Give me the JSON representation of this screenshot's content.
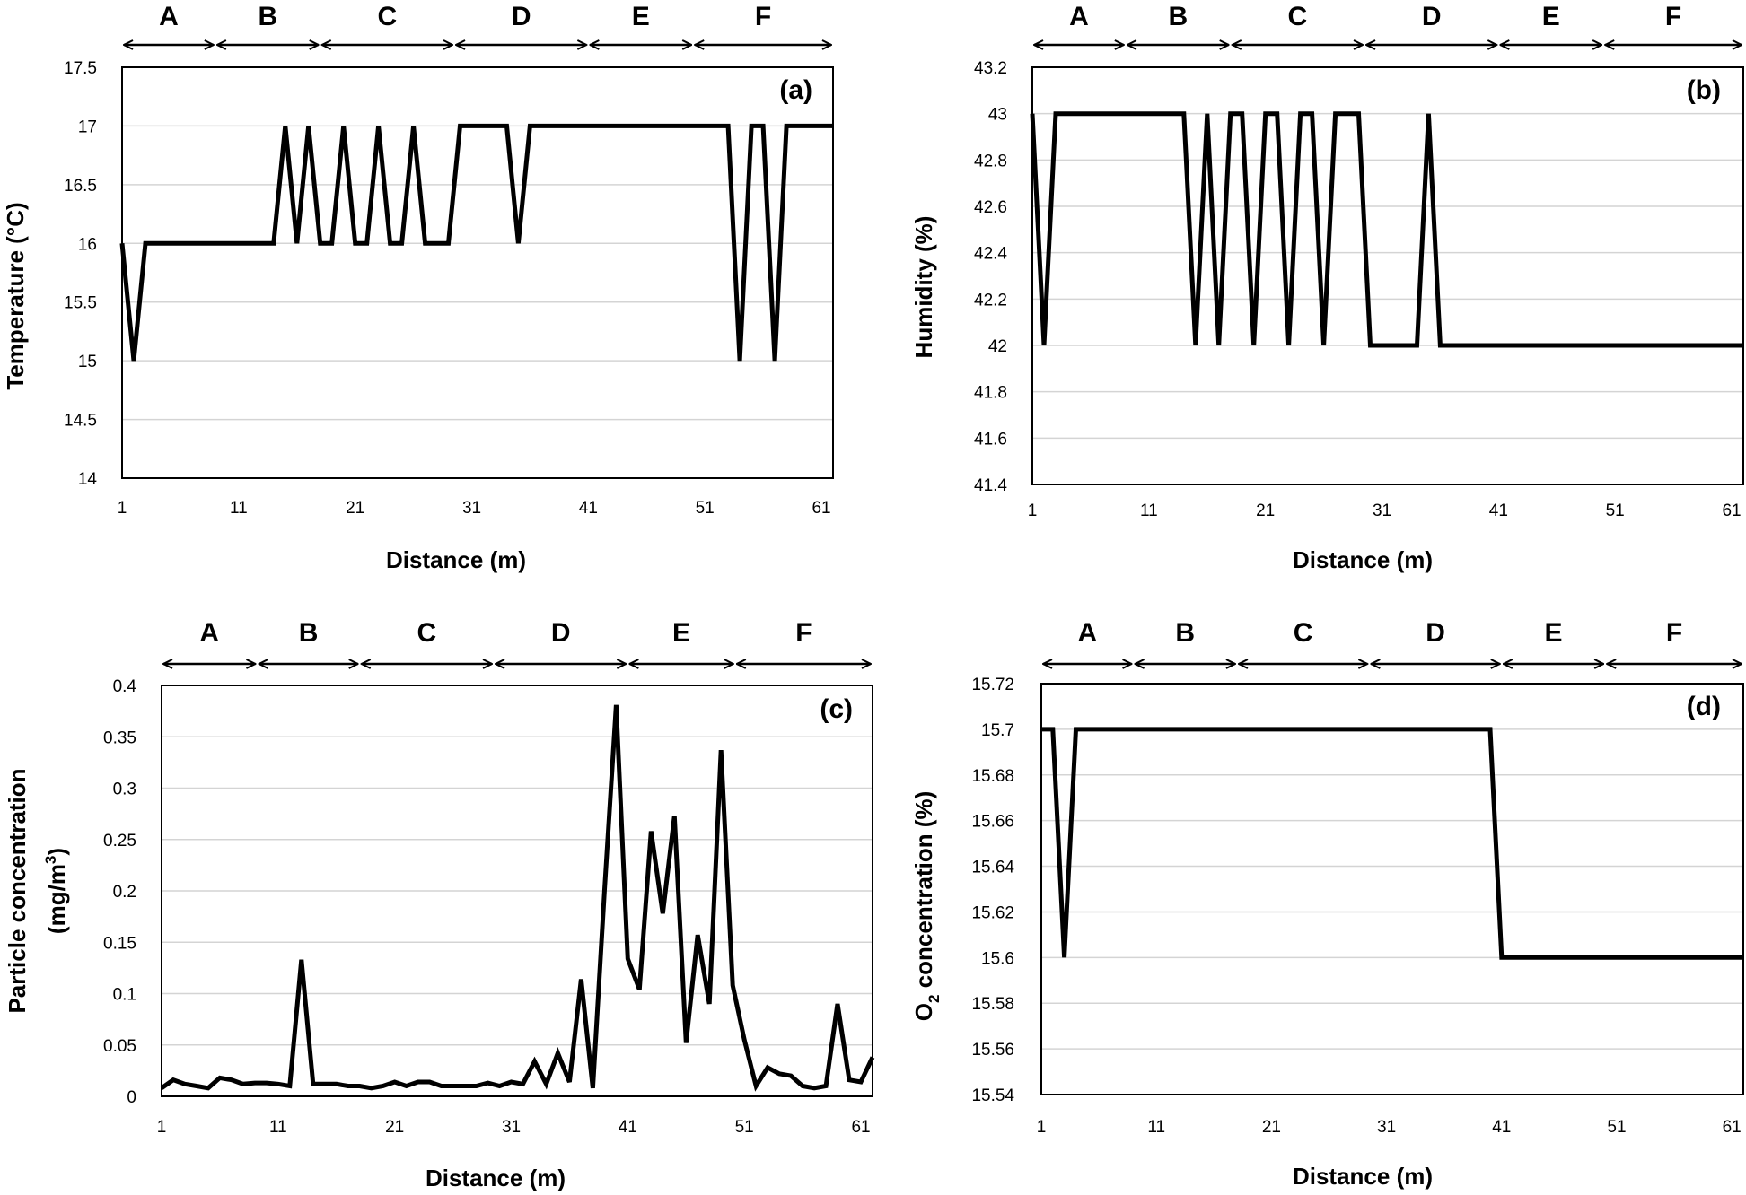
{
  "chart_data": [
    {
      "id": "a",
      "type": "line",
      "panel_label": "(a)",
      "xlabel": "Distance (m)",
      "ylabel": "Temperature (°C)",
      "xlim": [
        1,
        62
      ],
      "ylim": [
        14,
        17.5
      ],
      "xticks": [
        1,
        11,
        21,
        31,
        41,
        51,
        61
      ],
      "yticks": [
        "14",
        "14.5",
        "15",
        "15.5",
        "16",
        "16.5",
        "17",
        "17.5"
      ],
      "zones": [
        {
          "label": "A",
          "from": 1,
          "to": 9
        },
        {
          "label": "B",
          "from": 9,
          "to": 18
        },
        {
          "label": "C",
          "from": 18,
          "to": 29.5
        },
        {
          "label": "D",
          "from": 29.5,
          "to": 41
        },
        {
          "label": "E",
          "from": 41,
          "to": 50
        },
        {
          "label": "F",
          "from": 50,
          "to": 62
        }
      ],
      "series": [
        {
          "name": "Temperature",
          "x": [
            1,
            2,
            3,
            4,
            5,
            6,
            7,
            8,
            9,
            10,
            11,
            12,
            13,
            14,
            15,
            16,
            17,
            18,
            19,
            20,
            21,
            22,
            23,
            24,
            25,
            26,
            27,
            28,
            29,
            30,
            31,
            32,
            33,
            34,
            35,
            36,
            37,
            38,
            39,
            40,
            41,
            42,
            43,
            44,
            45,
            46,
            47,
            48,
            49,
            50,
            51,
            52,
            53,
            54,
            55,
            56,
            57,
            58,
            59,
            60,
            61,
            62
          ],
          "y": [
            16,
            15,
            16,
            16,
            16,
            16,
            16,
            16,
            16,
            16,
            16,
            16,
            16,
            16,
            17,
            16,
            17,
            16,
            16,
            17,
            16,
            16,
            17,
            16,
            16,
            17,
            16,
            16,
            16,
            17,
            17,
            17,
            17,
            17,
            16,
            17,
            17,
            17,
            17,
            17,
            17,
            17,
            17,
            17,
            17,
            17,
            17,
            17,
            17,
            17,
            17,
            17,
            17,
            15,
            17,
            17,
            15,
            17,
            17,
            17,
            17,
            17
          ]
        }
      ]
    },
    {
      "id": "b",
      "type": "line",
      "panel_label": "(b)",
      "xlabel": "Distance (m)",
      "ylabel": "Humidity (%)",
      "xlim": [
        1,
        62
      ],
      "ylim": [
        41.4,
        43.2
      ],
      "xticks": [
        1,
        11,
        21,
        31,
        41,
        51,
        61
      ],
      "yticks": [
        "41.4",
        "41.6",
        "41.8",
        "42",
        "42.2",
        "42.4",
        "42.6",
        "42.8",
        "43",
        "43.2"
      ],
      "zones": [
        {
          "label": "A",
          "from": 1,
          "to": 9
        },
        {
          "label": "B",
          "from": 9,
          "to": 18
        },
        {
          "label": "C",
          "from": 18,
          "to": 29.5
        },
        {
          "label": "D",
          "from": 29.5,
          "to": 41
        },
        {
          "label": "E",
          "from": 41,
          "to": 50
        },
        {
          "label": "F",
          "from": 50,
          "to": 62
        }
      ],
      "series": [
        {
          "name": "Humidity",
          "x": [
            1,
            2,
            3,
            4,
            5,
            6,
            7,
            8,
            9,
            10,
            11,
            12,
            13,
            14,
            15,
            16,
            17,
            18,
            19,
            20,
            21,
            22,
            23,
            24,
            25,
            26,
            27,
            28,
            29,
            30,
            31,
            32,
            33,
            34,
            35,
            36,
            37,
            38,
            39,
            40,
            41,
            42,
            43,
            44,
            45,
            46,
            47,
            48,
            49,
            50,
            51,
            52,
            53,
            54,
            55,
            56,
            57,
            58,
            59,
            60,
            61,
            62
          ],
          "y": [
            43,
            42,
            43,
            43,
            43,
            43,
            43,
            43,
            43,
            43,
            43,
            43,
            43,
            43,
            42,
            43,
            42,
            43,
            43,
            42,
            43,
            43,
            42,
            43,
            43,
            42,
            43,
            43,
            43,
            42,
            42,
            42,
            42,
            42,
            43,
            42,
            42,
            42,
            42,
            42,
            42,
            42,
            42,
            42,
            42,
            42,
            42,
            42,
            42,
            42,
            42,
            42,
            42,
            42,
            42,
            42,
            42,
            42,
            42,
            42,
            42,
            42
          ]
        }
      ]
    },
    {
      "id": "c",
      "type": "line",
      "panel_label": "(c)",
      "xlabel": "Distance (m)",
      "ylabel": "Particle concentration",
      "ylabel_line2_prefix": "(mg/m",
      "ylabel_line2_sup": "3",
      "ylabel_line2_suffix": ")",
      "xlim": [
        1,
        62
      ],
      "ylim": [
        0,
        0.4
      ],
      "xticks": [
        1,
        11,
        21,
        31,
        41,
        51,
        61
      ],
      "yticks": [
        "0",
        "0.05",
        "0.1",
        "0.15",
        "0.2",
        "0.25",
        "0.3",
        "0.35",
        "0.4"
      ],
      "zones": [
        {
          "label": "A",
          "from": 1,
          "to": 9.2
        },
        {
          "label": "B",
          "from": 9.2,
          "to": 18
        },
        {
          "label": "C",
          "from": 18,
          "to": 29.5
        },
        {
          "label": "D",
          "from": 29.5,
          "to": 41
        },
        {
          "label": "E",
          "from": 41,
          "to": 50.2
        },
        {
          "label": "F",
          "from": 50.2,
          "to": 62
        }
      ],
      "series": [
        {
          "name": "Particle concentration",
          "x": [
            1,
            2,
            3,
            4,
            5,
            6,
            7,
            8,
            9,
            10,
            11,
            12,
            13,
            14,
            15,
            16,
            17,
            18,
            19,
            20,
            21,
            22,
            23,
            24,
            25,
            26,
            27,
            28,
            29,
            30,
            31,
            32,
            33,
            34,
            35,
            36,
            37,
            38,
            39,
            40,
            41,
            42,
            43,
            44,
            45,
            46,
            47,
            48,
            49,
            50,
            51,
            52,
            53,
            54,
            55,
            56,
            57,
            58,
            59,
            60,
            61,
            62
          ],
          "y": [
            0.008,
            0.016,
            0.012,
            0.01,
            0.008,
            0.018,
            0.016,
            0.012,
            0.013,
            0.013,
            0.012,
            0.01,
            0.133,
            0.012,
            0.012,
            0.012,
            0.01,
            0.01,
            0.008,
            0.01,
            0.014,
            0.01,
            0.014,
            0.014,
            0.01,
            0.01,
            0.01,
            0.01,
            0.013,
            0.01,
            0.014,
            0.012,
            0.034,
            0.012,
            0.042,
            0.014,
            0.114,
            0.008,
            0.2,
            0.381,
            0.134,
            0.104,
            0.258,
            0.178,
            0.273,
            0.052,
            0.157,
            0.09,
            0.337,
            0.108,
            0.055,
            0.01,
            0.028,
            0.022,
            0.02,
            0.01,
            0.008,
            0.01,
            0.09,
            0.016,
            0.014,
            0.038
          ]
        }
      ]
    },
    {
      "id": "d",
      "type": "line",
      "panel_label": "(d)",
      "xlabel": "Distance (m)",
      "ylabel_prefix": "O",
      "ylabel_sub": "2",
      "ylabel_suffix": " concentration (%)",
      "xlim": [
        1,
        62
      ],
      "ylim": [
        15.54,
        15.72
      ],
      "xticks": [
        1,
        11,
        21,
        31,
        41,
        51,
        61
      ],
      "yticks": [
        "15.54",
        "15.56",
        "15.58",
        "15.6",
        "15.62",
        "15.64",
        "15.66",
        "15.68",
        "15.7",
        "15.72"
      ],
      "zones": [
        {
          "label": "A",
          "from": 1,
          "to": 9
        },
        {
          "label": "B",
          "from": 9,
          "to": 18
        },
        {
          "label": "C",
          "from": 18,
          "to": 29.5
        },
        {
          "label": "D",
          "from": 29.5,
          "to": 41
        },
        {
          "label": "E",
          "from": 41,
          "to": 50
        },
        {
          "label": "F",
          "from": 50,
          "to": 62
        }
      ],
      "series": [
        {
          "name": "O2 concentration",
          "x": [
            1,
            2,
            3,
            4,
            5,
            6,
            7,
            8,
            9,
            10,
            11,
            12,
            13,
            14,
            15,
            16,
            17,
            18,
            19,
            20,
            21,
            22,
            23,
            24,
            25,
            26,
            27,
            28,
            29,
            30,
            31,
            32,
            33,
            34,
            35,
            36,
            37,
            38,
            39,
            40,
            41,
            42,
            43,
            44,
            45,
            46,
            47,
            48,
            49,
            50,
            51,
            52,
            53,
            54,
            55,
            56,
            57,
            58,
            59,
            60,
            61,
            62
          ],
          "y": [
            15.7,
            15.7,
            15.6,
            15.7,
            15.7,
            15.7,
            15.7,
            15.7,
            15.7,
            15.7,
            15.7,
            15.7,
            15.7,
            15.7,
            15.7,
            15.7,
            15.7,
            15.7,
            15.7,
            15.7,
            15.7,
            15.7,
            15.7,
            15.7,
            15.7,
            15.7,
            15.7,
            15.7,
            15.7,
            15.7,
            15.7,
            15.7,
            15.7,
            15.7,
            15.7,
            15.7,
            15.7,
            15.7,
            15.7,
            15.7,
            15.6,
            15.6,
            15.6,
            15.6,
            15.6,
            15.6,
            15.6,
            15.6,
            15.6,
            15.6,
            15.6,
            15.6,
            15.6,
            15.6,
            15.6,
            15.6,
            15.6,
            15.6,
            15.6,
            15.6,
            15.6,
            15.6
          ]
        }
      ]
    }
  ]
}
